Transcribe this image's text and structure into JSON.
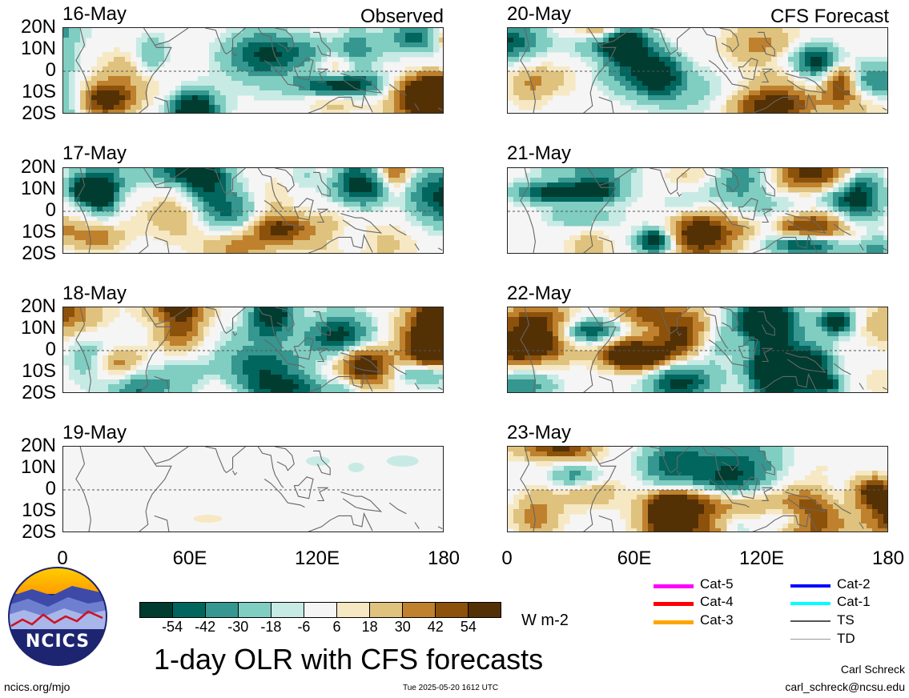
{
  "figure": {
    "title": "1-day OLR with CFS forecasts",
    "units": "W m-2",
    "left_column_label": "Observed",
    "right_column_label": "CFS Forecast",
    "logo_text": "NCICS",
    "footer_left": "ncics.org/mjo",
    "footer_center": "Tue 2025-05-20 1612 UTC",
    "footer_author": "Carl Schreck",
    "footer_email": "carl_schreck@ncsu.edu"
  },
  "axes": {
    "lat_labels": [
      "20N",
      "10N",
      "0",
      "10S",
      "20S"
    ],
    "lon_labels": [
      "0",
      "60E",
      "120E",
      "180"
    ]
  },
  "colorbar": {
    "labels": [
      "-54",
      "-42",
      "-30",
      "-18",
      "-6",
      "6",
      "18",
      "30",
      "42",
      "54"
    ],
    "colors": [
      "#003c30",
      "#01665e",
      "#35978f",
      "#80cdc1",
      "#c7eae5",
      "#f5f5f5",
      "#f6e8c3",
      "#dfc27d",
      "#bf812d",
      "#8c510a",
      "#543005"
    ]
  },
  "legend": {
    "items": [
      {
        "label": "Cat-5",
        "color": "#ff00ff",
        "width": 5
      },
      {
        "label": "Cat-4",
        "color": "#ff0000",
        "width": 5
      },
      {
        "label": "Cat-3",
        "color": "#ffa500",
        "width": 5
      },
      {
        "label": "Cat-2",
        "color": "#0000ff",
        "width": 4
      },
      {
        "label": "Cat-1",
        "color": "#00ffff",
        "width": 4
      },
      {
        "label": "TS",
        "color": "#555555",
        "width": 2
      },
      {
        "label": "TD",
        "color": "#999999",
        "width": 1
      }
    ]
  },
  "chart_data": {
    "type": "heatmap",
    "title": "1-day OLR with CFS forecasts",
    "colorbar_units": "W m-2",
    "x_range": [
      0,
      180
    ],
    "y_range": [
      -20,
      20
    ],
    "panels": [
      {
        "date": "16-May",
        "source": "Observed"
      },
      {
        "date": "17-May",
        "source": "Observed"
      },
      {
        "date": "18-May",
        "source": "Observed"
      },
      {
        "date": "19-May",
        "source": "Observed"
      },
      {
        "date": "20-May",
        "source": "CFS Forecast"
      },
      {
        "date": "21-May",
        "source": "CFS Forecast"
      },
      {
        "date": "22-May",
        "source": "CFS Forecast"
      },
      {
        "date": "23-May",
        "source": "CFS Forecast"
      }
    ]
  }
}
